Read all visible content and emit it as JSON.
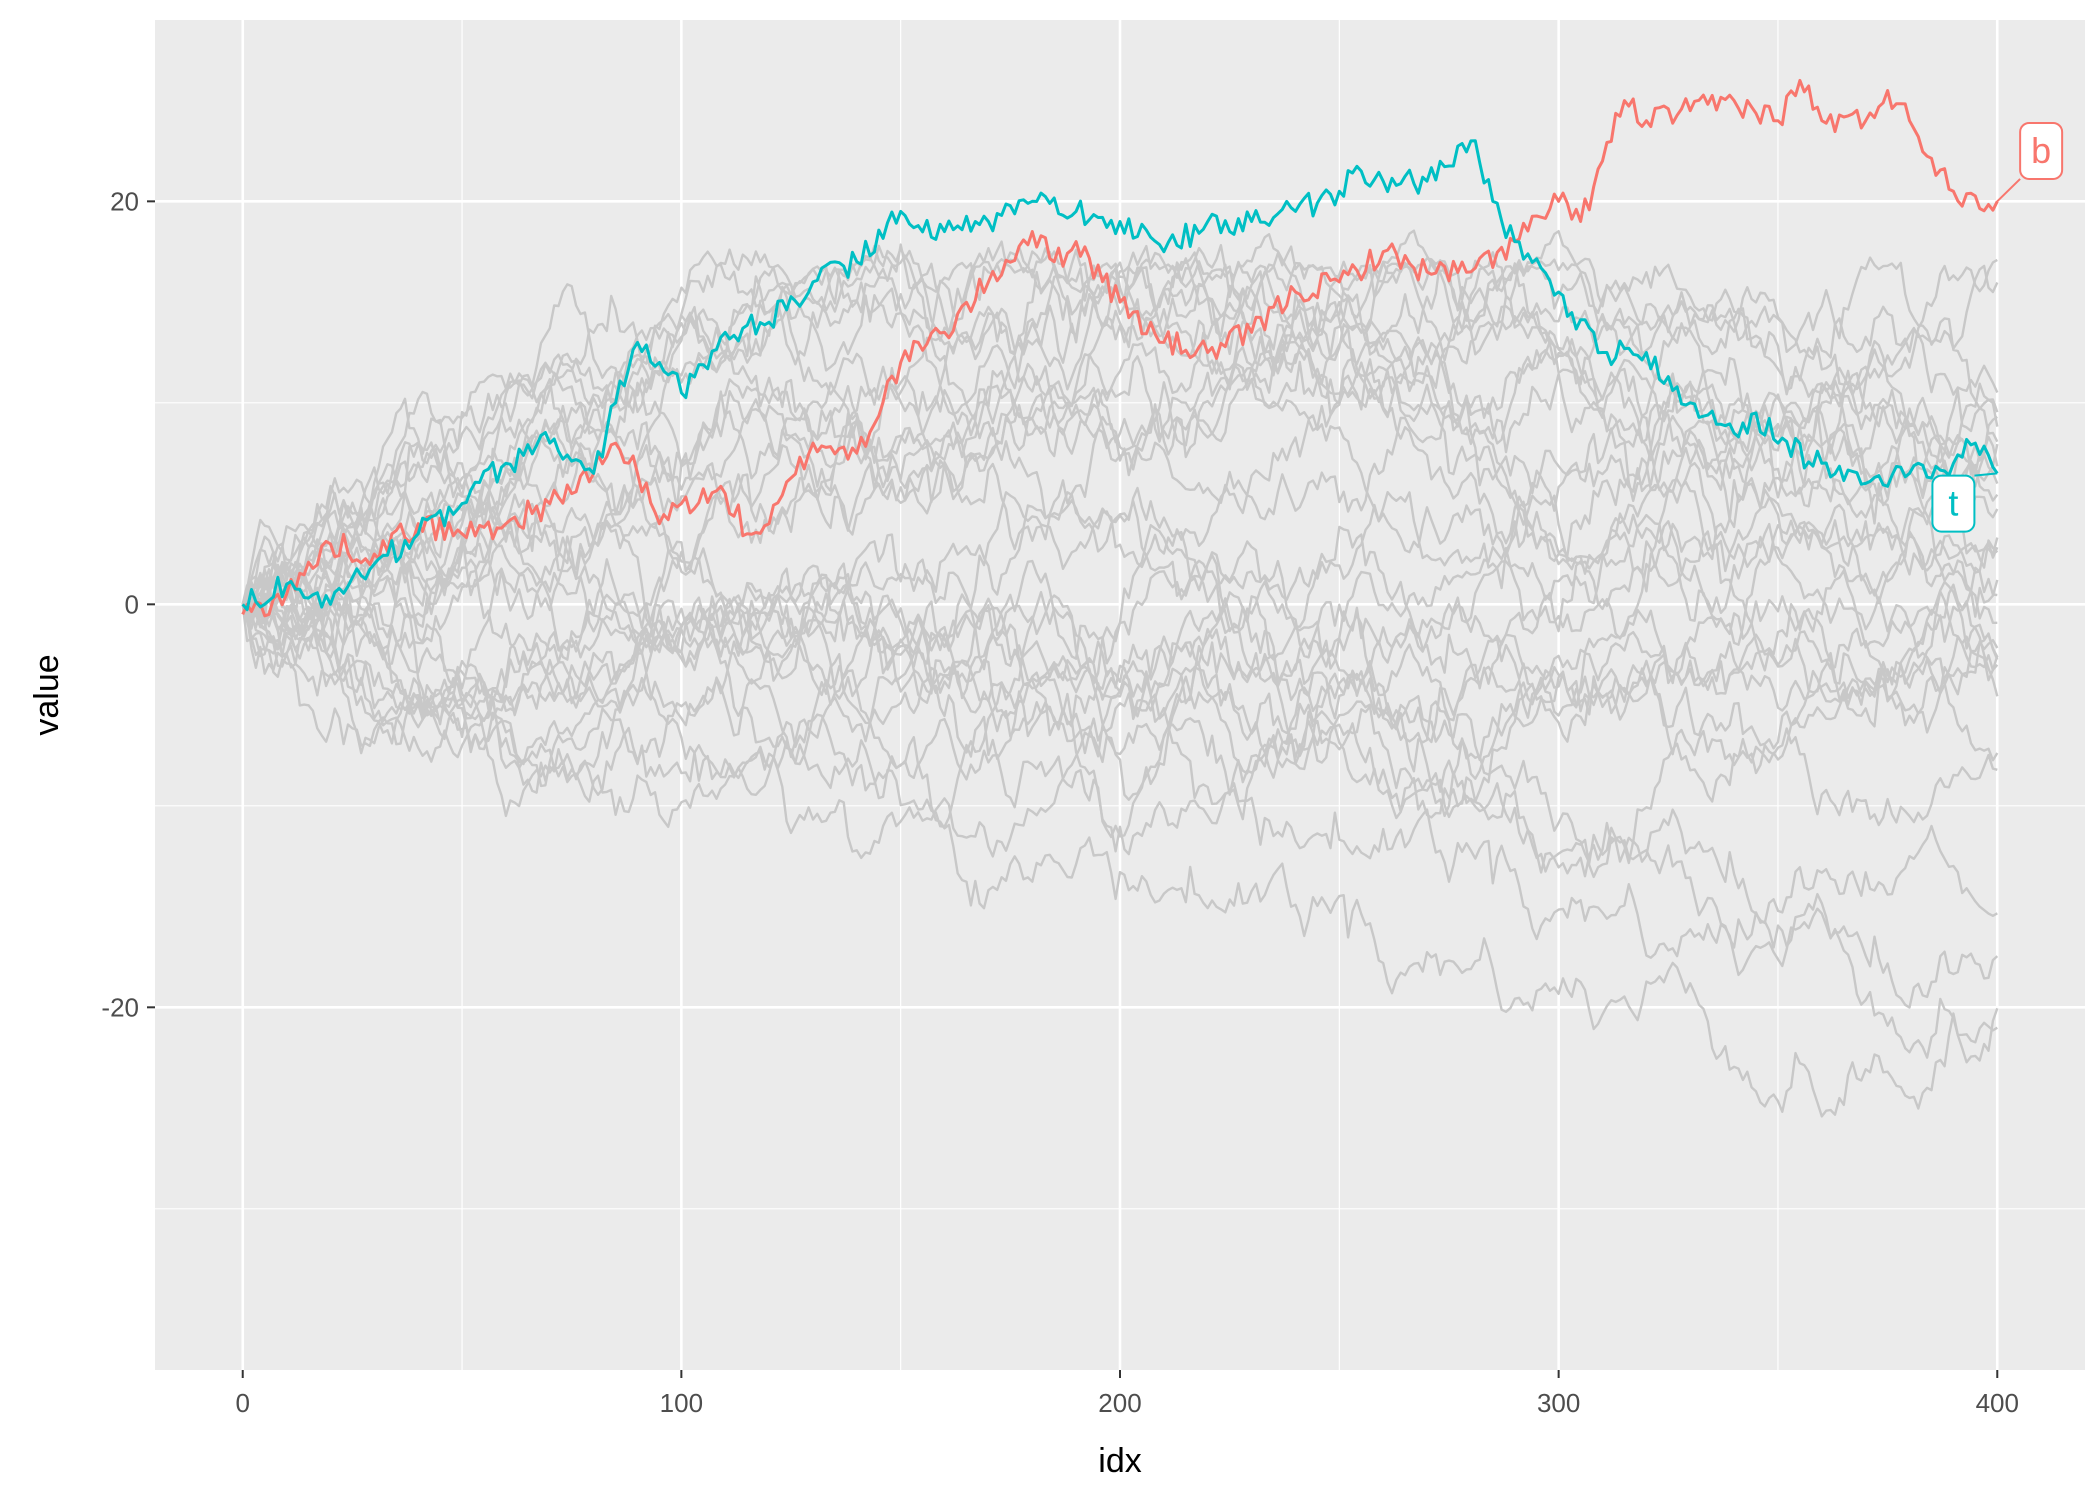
{
  "chart_data": {
    "type": "line",
    "xlabel": "idx",
    "ylabel": "value",
    "xlim": [
      -20,
      420
    ],
    "ylim": [
      -38,
      29
    ],
    "x_ticks": [
      0,
      100,
      200,
      300,
      400
    ],
    "x_tick_labels": [
      "0",
      "100",
      "200",
      "300",
      "400"
    ],
    "y_ticks": [
      -20,
      0,
      20
    ],
    "y_tick_labels": [
      "-20",
      "0",
      "20"
    ],
    "x_minor_ticks": [
      50,
      150,
      250,
      350
    ],
    "y_minor_ticks": [
      -30,
      -10,
      10
    ],
    "grid": true,
    "legend": "none",
    "colors": {
      "panel": "#ebebeb",
      "grid": "#ffffff",
      "background_series": "#c8c8c8",
      "highlight_b": "#f8766d",
      "highlight_t": "#00bfc4"
    },
    "highlight_series": [
      {
        "name": "b",
        "color": "#f8766d",
        "x": [
          0,
          10,
          20,
          30,
          40,
          50,
          60,
          70,
          80,
          85,
          90,
          95,
          100,
          110,
          115,
          120,
          130,
          140,
          150,
          160,
          170,
          180,
          185,
          190,
          200,
          210,
          220,
          230,
          240,
          250,
          260,
          270,
          280,
          290,
          300,
          305,
          310,
          315,
          320,
          330,
          340,
          350,
          355,
          360,
          370,
          375,
          380,
          390,
          400
        ],
        "y": [
          -0.5,
          0.5,
          3,
          2.5,
          4,
          3.5,
          4,
          5,
          6.5,
          8,
          6.5,
          4,
          5,
          5.5,
          3.5,
          4,
          8,
          7.5,
          12,
          13.5,
          16,
          18.5,
          17,
          18,
          15,
          13,
          12.5,
          13.5,
          15.5,
          16,
          17.5,
          16.5,
          16.5,
          18,
          20,
          19,
          22,
          25,
          24,
          24.5,
          25,
          24,
          26,
          24,
          24,
          25.5,
          24,
          20.5,
          20
        ]
      },
      {
        "name": "t",
        "color": "#00bfc4",
        "x": [
          0,
          10,
          20,
          30,
          40,
          50,
          60,
          70,
          80,
          85,
          90,
          95,
          100,
          110,
          120,
          130,
          140,
          150,
          160,
          170,
          180,
          190,
          200,
          210,
          220,
          230,
          240,
          250,
          255,
          260,
          270,
          280,
          285,
          290,
          300,
          310,
          320,
          330,
          340,
          345,
          350,
          360,
          370,
          380,
          390,
          395,
          400
        ],
        "y": [
          0,
          1,
          0,
          2,
          3.5,
          5,
          7,
          8,
          6.5,
          10,
          13,
          12,
          10.5,
          13.5,
          14,
          16,
          17,
          19.5,
          18.5,
          19,
          20,
          19.5,
          19,
          17.5,
          19,
          19,
          19.5,
          20.5,
          21.5,
          21,
          21,
          23,
          20,
          18,
          15.5,
          12.5,
          12.5,
          10,
          8.5,
          9.5,
          8,
          7,
          6,
          6.5,
          7,
          8,
          6.5
        ]
      }
    ],
    "labels": [
      {
        "text": "b",
        "series": "b",
        "x": 400,
        "y": 20,
        "label_x": 410,
        "label_y": 22.5
      },
      {
        "text": "t",
        "series": "t",
        "x": 400,
        "y": 6.5,
        "label_x": 390,
        "label_y": 5
      }
    ],
    "background_series_count": 30,
    "background_steps": 400
  }
}
